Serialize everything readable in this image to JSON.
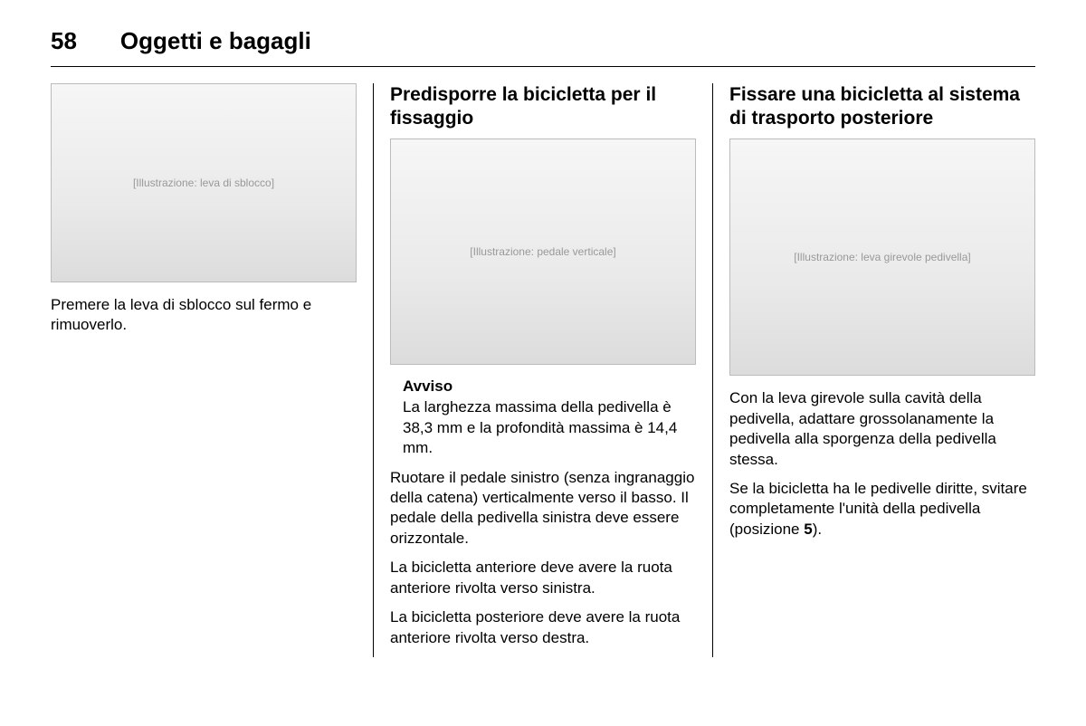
{
  "page_number": "58",
  "page_title": "Oggetti e bagagli",
  "col1": {
    "figure_alt": "[Illustrazione: leva di sblocco]",
    "p1": "Premere la leva di sblocco sul fermo e rimuoverlo."
  },
  "col2": {
    "heading": "Predisporre la bicicletta per il fissaggio",
    "figure_alt": "[Illustrazione: pedale verticale]",
    "avviso_label": "Avviso",
    "avviso_text": "La larghezza massima della pedi­vella è 38,3 mm e la profondità mas­sima è 14,4 mm.",
    "p1": "Ruotare il pedale sinistro (senza in­granaggio della catena) vertical­mente verso il basso. Il pedale della pedivella sinistra deve essere oriz­zontale.",
    "p2": "La bicicletta anteriore deve avere la ruota anteriore rivolta verso sinistra.",
    "p3": "La bicicletta posteriore deve avere la ruota anteriore rivolta verso destra."
  },
  "col3": {
    "heading": "Fissare una bicicletta al sistema di trasporto posteriore",
    "figure_alt": "[Illustrazione: leva girevole pedivella]",
    "p1": "Con la leva girevole sulla cavità della pedivella, adattare grossolanamente la pedivella alla sporgenza della pe­divella stessa.",
    "p2_a": "Se la bicicletta ha le pedivelle diritte, svitare completamente l'unità della pedivella (posizione ",
    "p2_b": "5",
    "p2_c": ")."
  }
}
